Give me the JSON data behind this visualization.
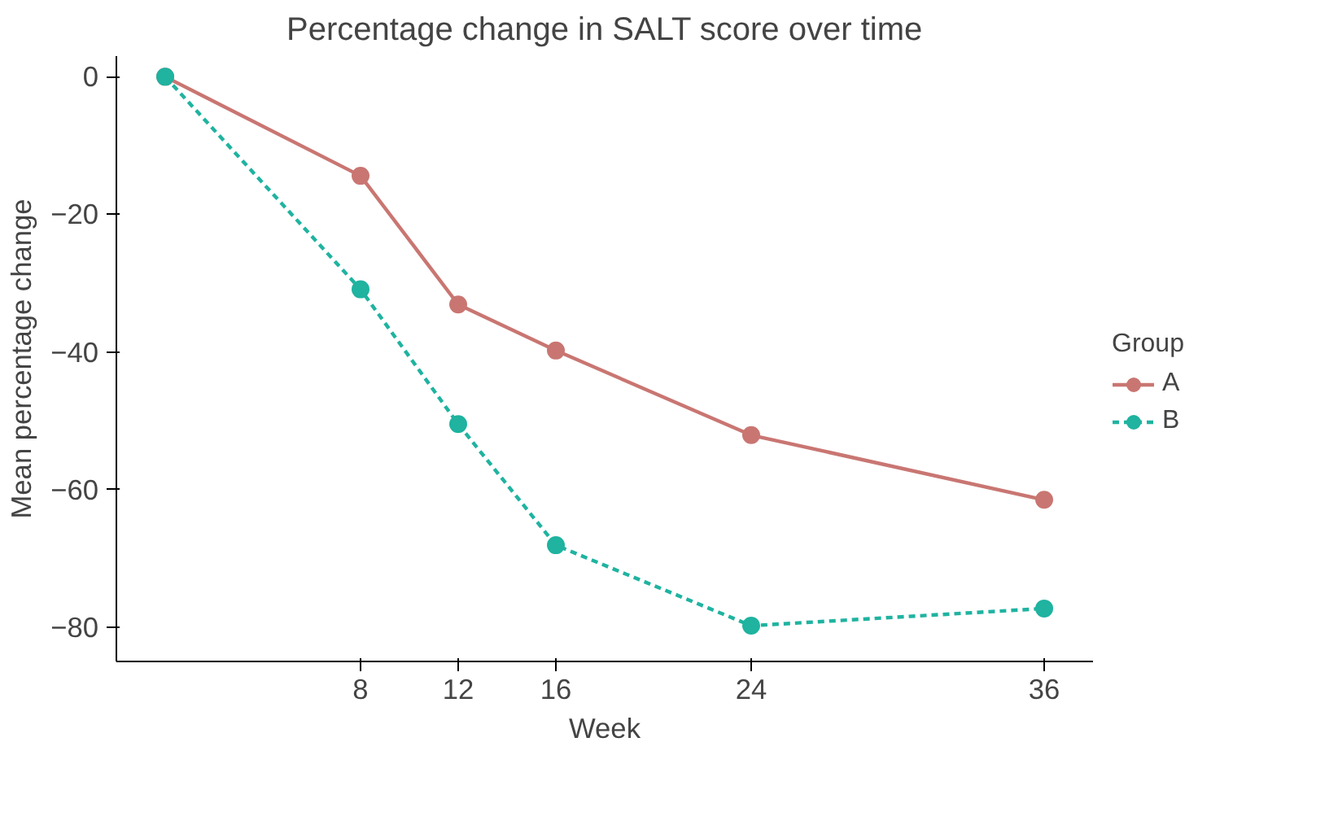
{
  "chart_data": {
    "type": "line",
    "title": "Percentage change in SALT score over time",
    "xlabel": "Week",
    "ylabel": "Mean percentage change",
    "legend_title": "Group",
    "x": [
      0,
      8,
      12,
      16,
      24,
      36
    ],
    "series": [
      {
        "name": "A",
        "color": "#c97672",
        "values": [
          0,
          -14.4,
          -33.1,
          -39.8,
          -52.1,
          -61.5
        ],
        "line_style": "solid"
      },
      {
        "name": "B",
        "color": "#1fb3a0",
        "values": [
          0,
          -30.9,
          -50.5,
          -68.1,
          -79.8,
          -77.3
        ],
        "line_style": "dashed"
      }
    ],
    "xlim": [
      -2,
      38
    ],
    "xticks": [
      8,
      12,
      16,
      24,
      36
    ],
    "ylim": [
      -85,
      3
    ],
    "yticks": [
      0,
      -20,
      -40,
      -60,
      -80
    ],
    "grid": false,
    "legend": "right",
    "marker": "circle"
  }
}
